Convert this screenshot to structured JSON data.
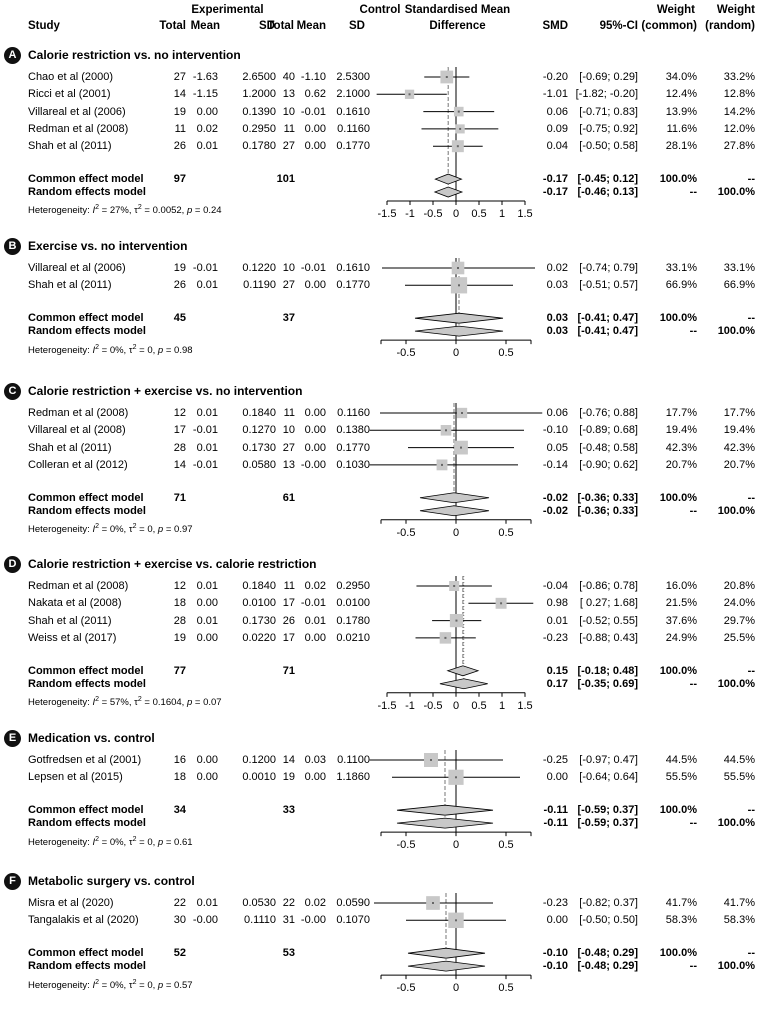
{
  "header": {
    "study": "Study",
    "experimental": "Experimental",
    "control": "Control",
    "exp_total": "Total",
    "exp_mean": "Mean",
    "exp_sd": "SD",
    "ctl_total": "Total",
    "ctl_mean": "Mean",
    "ctl_sd": "SD",
    "smd_title_1": "Standardised Mean",
    "smd_title_2": "Difference",
    "smd": "SMD",
    "ci": "95%-CI",
    "weight_common_1": "Weight",
    "weight_common_2": "(common)",
    "weight_random_1": "Weight",
    "weight_random_2": "(random)"
  },
  "colors": {
    "box": "#c8c8c8",
    "diamond": "#c8c8c8",
    "line": "#000000",
    "badge": "#111111"
  },
  "chart_data": [
    {
      "type": "forest",
      "label": "A",
      "title": "Calorie restriction vs. no intervention",
      "xlim": [
        -1.5,
        1.5
      ],
      "ticks": [
        "-1.5",
        "-1",
        "-0.5",
        "0",
        "0.5",
        "1",
        "1.5"
      ],
      "studies": [
        {
          "study": "Chao et al (2000)",
          "n_e": "27",
          "mean_e": "-1.63",
          "sd_e": "2.6500",
          "n_c": "40",
          "mean_c": "-1.10",
          "sd_c": "2.5300",
          "smd": -0.2,
          "lo": -0.69,
          "hi": 0.29,
          "smd_text": "-0.20",
          "ci_text": "[-0.69; 0.29]",
          "w_common": "34.0%",
          "w_random": "33.2%",
          "w": 34.0
        },
        {
          "study": "Ricci et al (2001)",
          "n_e": "14",
          "mean_e": "-1.15",
          "sd_e": "1.2000",
          "n_c": "13",
          "mean_c": "0.62",
          "sd_c": "2.1000",
          "smd": -1.01,
          "lo": -1.82,
          "hi": -0.2,
          "smd_text": "-1.01",
          "ci_text": "[-1.82; -0.20]",
          "w_common": "12.4%",
          "w_random": "12.8%",
          "w": 12.4
        },
        {
          "study": "Villareal et al (2006)",
          "n_e": "19",
          "mean_e": "0.00",
          "sd_e": "0.1390",
          "n_c": "10",
          "mean_c": "-0.01",
          "sd_c": "0.1610",
          "smd": 0.06,
          "lo": -0.71,
          "hi": 0.83,
          "smd_text": "0.06",
          "ci_text": "[-0.71; 0.83]",
          "w_common": "13.9%",
          "w_random": "14.2%",
          "w": 13.9
        },
        {
          "study": "Redman et al (2008)",
          "n_e": "11",
          "mean_e": "0.02",
          "sd_e": "0.2950",
          "n_c": "11",
          "mean_c": "0.00",
          "sd_c": "0.1160",
          "smd": 0.09,
          "lo": -0.75,
          "hi": 0.92,
          "smd_text": "0.09",
          "ci_text": "[-0.75; 0.92]",
          "w_common": "11.6%",
          "w_random": "12.0%",
          "w": 11.6
        },
        {
          "study": "Shah et al (2011)",
          "n_e": "26",
          "mean_e": "0.01",
          "sd_e": "0.1780",
          "n_c": "27",
          "mean_c": "0.00",
          "sd_c": "0.1770",
          "smd": 0.04,
          "lo": -0.5,
          "hi": 0.58,
          "smd_text": "0.04",
          "ci_text": "[-0.50; 0.58]",
          "w_common": "28.1%",
          "w_random": "27.8%",
          "w": 28.1
        }
      ],
      "common": {
        "label": "Common effect model",
        "n_e": "97",
        "n_c": "101",
        "smd": -0.17,
        "lo": -0.45,
        "hi": 0.12,
        "smd_text": "-0.17",
        "ci_text": "[-0.45; 0.12]",
        "w_common": "100.0%",
        "w_random": "--"
      },
      "random": {
        "label": "Random effects model",
        "smd": -0.17,
        "lo": -0.46,
        "hi": 0.13,
        "smd_text": "-0.17",
        "ci_text": "[-0.46; 0.13]",
        "w_common": "--",
        "w_random": "100.0%"
      },
      "heterogeneity": {
        "prefix": "Heterogeneity: ",
        "i2": "27%",
        "tau2": "0.0052",
        "p": "0.24"
      }
    },
    {
      "type": "forest",
      "label": "B",
      "title": "Exercise vs. no intervention",
      "xlim": [
        -0.75,
        0.75
      ],
      "ticks": [
        "-0.5",
        "0",
        "0.5"
      ],
      "studies": [
        {
          "study": "Villareal et al (2006)",
          "n_e": "19",
          "mean_e": "-0.01",
          "sd_e": "0.1220",
          "n_c": "10",
          "mean_c": "-0.01",
          "sd_c": "0.1610",
          "smd": 0.02,
          "lo": -0.74,
          "hi": 0.79,
          "smd_text": "0.02",
          "ci_text": "[-0.74; 0.79]",
          "w_common": "33.1%",
          "w_random": "33.1%",
          "w": 33.1
        },
        {
          "study": "Shah et al (2011)",
          "n_e": "26",
          "mean_e": "0.01",
          "sd_e": "0.1190",
          "n_c": "27",
          "mean_c": "0.00",
          "sd_c": "0.1770",
          "smd": 0.03,
          "lo": -0.51,
          "hi": 0.57,
          "smd_text": "0.03",
          "ci_text": "[-0.51; 0.57]",
          "w_common": "66.9%",
          "w_random": "66.9%",
          "w": 66.9
        }
      ],
      "common": {
        "label": "Common effect model",
        "n_e": "45",
        "n_c": "37",
        "smd": 0.03,
        "lo": -0.41,
        "hi": 0.47,
        "smd_text": "0.03",
        "ci_text": "[-0.41; 0.47]",
        "w_common": "100.0%",
        "w_random": "--"
      },
      "random": {
        "label": "Random effects model",
        "smd": 0.03,
        "lo": -0.41,
        "hi": 0.47,
        "smd_text": "0.03",
        "ci_text": "[-0.41; 0.47]",
        "w_common": "--",
        "w_random": "100.0%"
      },
      "heterogeneity": {
        "prefix": "Heterogeneity: ",
        "i2": "0%",
        "tau2": "0",
        "p": "0.98"
      }
    },
    {
      "type": "forest",
      "label": "C",
      "title": "Calorie restriction + exercise vs. no intervention",
      "xlim": [
        -0.75,
        0.75
      ],
      "ticks": [
        "-0.5",
        "0",
        "0.5"
      ],
      "studies": [
        {
          "study": "Redman et al (2008)",
          "n_e": "12",
          "mean_e": "0.01",
          "sd_e": "0.1840",
          "n_c": "11",
          "mean_c": "0.00",
          "sd_c": "0.1160",
          "smd": 0.06,
          "lo": -0.76,
          "hi": 0.88,
          "smd_text": "0.06",
          "ci_text": "[-0.76; 0.88]",
          "w_common": "17.7%",
          "w_random": "17.7%",
          "w": 17.7
        },
        {
          "study": "Villareal et al (2008)",
          "n_e": "17",
          "mean_e": "-0.01",
          "sd_e": "0.1270",
          "n_c": "10",
          "mean_c": "0.00",
          "sd_c": "0.1380",
          "smd": -0.1,
          "lo": -0.89,
          "hi": 0.68,
          "smd_text": "-0.10",
          "ci_text": "[-0.89; 0.68]",
          "w_common": "19.4%",
          "w_random": "19.4%",
          "w": 19.4
        },
        {
          "study": "Shah et al (2011)",
          "n_e": "28",
          "mean_e": "0.01",
          "sd_e": "0.1730",
          "n_c": "27",
          "mean_c": "0.00",
          "sd_c": "0.1770",
          "smd": 0.05,
          "lo": -0.48,
          "hi": 0.58,
          "smd_text": "0.05",
          "ci_text": "[-0.48; 0.58]",
          "w_common": "42.3%",
          "w_random": "42.3%",
          "w": 42.3
        },
        {
          "study": "Colleran et al (2012)",
          "n_e": "14",
          "mean_e": "-0.01",
          "sd_e": "0.0580",
          "n_c": "13",
          "mean_c": "-0.00",
          "sd_c": "0.1030",
          "smd": -0.14,
          "lo": -0.9,
          "hi": 0.62,
          "smd_text": "-0.14",
          "ci_text": "[-0.90; 0.62]",
          "w_common": "20.7%",
          "w_random": "20.7%",
          "w": 20.7
        }
      ],
      "common": {
        "label": "Common effect model",
        "n_e": "71",
        "n_c": "61",
        "smd": -0.02,
        "lo": -0.36,
        "hi": 0.33,
        "smd_text": "-0.02",
        "ci_text": "[-0.36; 0.33]",
        "w_common": "100.0%",
        "w_random": "--"
      },
      "random": {
        "label": "Random effects model",
        "smd": -0.02,
        "lo": -0.36,
        "hi": 0.33,
        "smd_text": "-0.02",
        "ci_text": "[-0.36; 0.33]",
        "w_common": "--",
        "w_random": "100.0%"
      },
      "heterogeneity": {
        "prefix": "Heterogeneity: ",
        "i2": "0%",
        "tau2": "0",
        "p": "0.97"
      }
    },
    {
      "type": "forest",
      "label": "D",
      "title": "Calorie restriction + exercise vs. calorie restriction",
      "xlim": [
        -1.5,
        1.5
      ],
      "ticks": [
        "-1.5",
        "-1",
        "-0.5",
        "0",
        "0.5",
        "1",
        "1.5"
      ],
      "studies": [
        {
          "study": "Redman et al (2008)",
          "n_e": "12",
          "mean_e": "0.01",
          "sd_e": "0.1840",
          "n_c": "11",
          "mean_c": "0.02",
          "sd_c": "0.2950",
          "smd": -0.04,
          "lo": -0.86,
          "hi": 0.78,
          "smd_text": "-0.04",
          "ci_text": "[-0.86; 0.78]",
          "w_common": "16.0%",
          "w_random": "20.8%",
          "w": 16.0
        },
        {
          "study": "Nakata et al (2008)",
          "n_e": "18",
          "mean_e": "0.00",
          "sd_e": "0.0100",
          "n_c": "17",
          "mean_c": "-0.01",
          "sd_c": "0.0100",
          "smd": 0.98,
          "lo": 0.27,
          "hi": 1.68,
          "smd_text": "0.98",
          "ci_text": "[ 0.27; 1.68]",
          "w_common": "21.5%",
          "w_random": "24.0%",
          "w": 21.5
        },
        {
          "study": "Shah et al (2011)",
          "n_e": "28",
          "mean_e": "0.01",
          "sd_e": "0.1730",
          "n_c": "26",
          "mean_c": "0.01",
          "sd_c": "0.1780",
          "smd": 0.01,
          "lo": -0.52,
          "hi": 0.55,
          "smd_text": "0.01",
          "ci_text": "[-0.52; 0.55]",
          "w_common": "37.6%",
          "w_random": "29.7%",
          "w": 37.6
        },
        {
          "study": "Weiss et al (2017)",
          "n_e": "19",
          "mean_e": "0.00",
          "sd_e": "0.0220",
          "n_c": "17",
          "mean_c": "0.00",
          "sd_c": "0.0210",
          "smd": -0.23,
          "lo": -0.88,
          "hi": 0.43,
          "smd_text": "-0.23",
          "ci_text": "[-0.88; 0.43]",
          "w_common": "24.9%",
          "w_random": "25.5%",
          "w": 24.9
        }
      ],
      "common": {
        "label": "Common effect model",
        "n_e": "77",
        "n_c": "71",
        "smd": 0.15,
        "lo": -0.18,
        "hi": 0.48,
        "smd_text": "0.15",
        "ci_text": "[-0.18; 0.48]",
        "w_common": "100.0%",
        "w_random": "--"
      },
      "random": {
        "label": "Random effects model",
        "smd": 0.17,
        "lo": -0.35,
        "hi": 0.69,
        "smd_text": "0.17",
        "ci_text": "[-0.35; 0.69]",
        "w_common": "--",
        "w_random": "100.0%"
      },
      "heterogeneity": {
        "prefix": "Heterogeneity: ",
        "i2": "57%",
        "tau2": "0.1604",
        "p": "0.07"
      }
    },
    {
      "type": "forest",
      "label": "E",
      "title": "Medication vs. control",
      "xlim": [
        -0.75,
        0.75
      ],
      "ticks": [
        "-0.5",
        "0",
        "0.5"
      ],
      "studies": [
        {
          "study": "Gotfredsen et al (2001)",
          "n_e": "16",
          "mean_e": "0.00",
          "sd_e": "0.1200",
          "n_c": "14",
          "mean_c": "0.03",
          "sd_c": "0.1100",
          "smd": -0.25,
          "lo": -0.97,
          "hi": 0.47,
          "smd_text": "-0.25",
          "ci_text": "[-0.97; 0.47]",
          "w_common": "44.5%",
          "w_random": "44.5%",
          "w": 44.5
        },
        {
          "study": "Lepsen et al (2015)",
          "n_e": "18",
          "mean_e": "0.00",
          "sd_e": "0.0010",
          "n_c": "19",
          "mean_c": "0.00",
          "sd_c": "1.1860",
          "smd": 0.0,
          "lo": -0.64,
          "hi": 0.64,
          "smd_text": "0.00",
          "ci_text": "[-0.64; 0.64]",
          "w_common": "55.5%",
          "w_random": "55.5%",
          "w": 55.5
        }
      ],
      "common": {
        "label": "Common effect model",
        "n_e": "34",
        "n_c": "33",
        "smd": -0.11,
        "lo": -0.59,
        "hi": 0.37,
        "smd_text": "-0.11",
        "ci_text": "[-0.59; 0.37]",
        "w_common": "100.0%",
        "w_random": "--"
      },
      "random": {
        "label": "Random effects model",
        "smd": -0.11,
        "lo": -0.59,
        "hi": 0.37,
        "smd_text": "-0.11",
        "ci_text": "[-0.59; 0.37]",
        "w_common": "--",
        "w_random": "100.0%"
      },
      "heterogeneity": {
        "prefix": "Heterogeneity: ",
        "i2": "0%",
        "tau2": "0",
        "p": "0.61"
      }
    },
    {
      "type": "forest",
      "label": "F",
      "title": "Metabolic surgery vs. control",
      "xlim": [
        -0.75,
        0.75
      ],
      "ticks": [
        "-0.5",
        "0",
        "0.5"
      ],
      "studies": [
        {
          "study": "Misra et al (2020)",
          "n_e": "22",
          "mean_e": "0.01",
          "sd_e": "0.0530",
          "n_c": "22",
          "mean_c": "0.02",
          "sd_c": "0.0590",
          "smd": -0.23,
          "lo": -0.82,
          "hi": 0.37,
          "smd_text": "-0.23",
          "ci_text": "[-0.82; 0.37]",
          "w_common": "41.7%",
          "w_random": "41.7%",
          "w": 41.7
        },
        {
          "study": "Tangalakis et al (2020)",
          "n_e": "30",
          "mean_e": "-0.00",
          "sd_e": "0.1110",
          "n_c": "31",
          "mean_c": "-0.00",
          "sd_c": "0.1070",
          "smd": 0.0,
          "lo": -0.5,
          "hi": 0.5,
          "smd_text": "0.00",
          "ci_text": "[-0.50; 0.50]",
          "w_common": "58.3%",
          "w_random": "58.3%",
          "w": 58.3
        }
      ],
      "common": {
        "label": "Common effect model",
        "n_e": "52",
        "n_c": "53",
        "smd": -0.1,
        "lo": -0.48,
        "hi": 0.29,
        "smd_text": "-0.10",
        "ci_text": "[-0.48; 0.29]",
        "w_common": "100.0%",
        "w_random": "--"
      },
      "random": {
        "label": "Random effects model",
        "smd": -0.1,
        "lo": -0.48,
        "hi": 0.29,
        "smd_text": "-0.10",
        "ci_text": "[-0.48; 0.29]",
        "w_common": "--",
        "w_random": "100.0%"
      },
      "heterogeneity": {
        "prefix": "Heterogeneity: ",
        "i2": "0%",
        "tau2": "0",
        "p": "0.57"
      }
    }
  ]
}
